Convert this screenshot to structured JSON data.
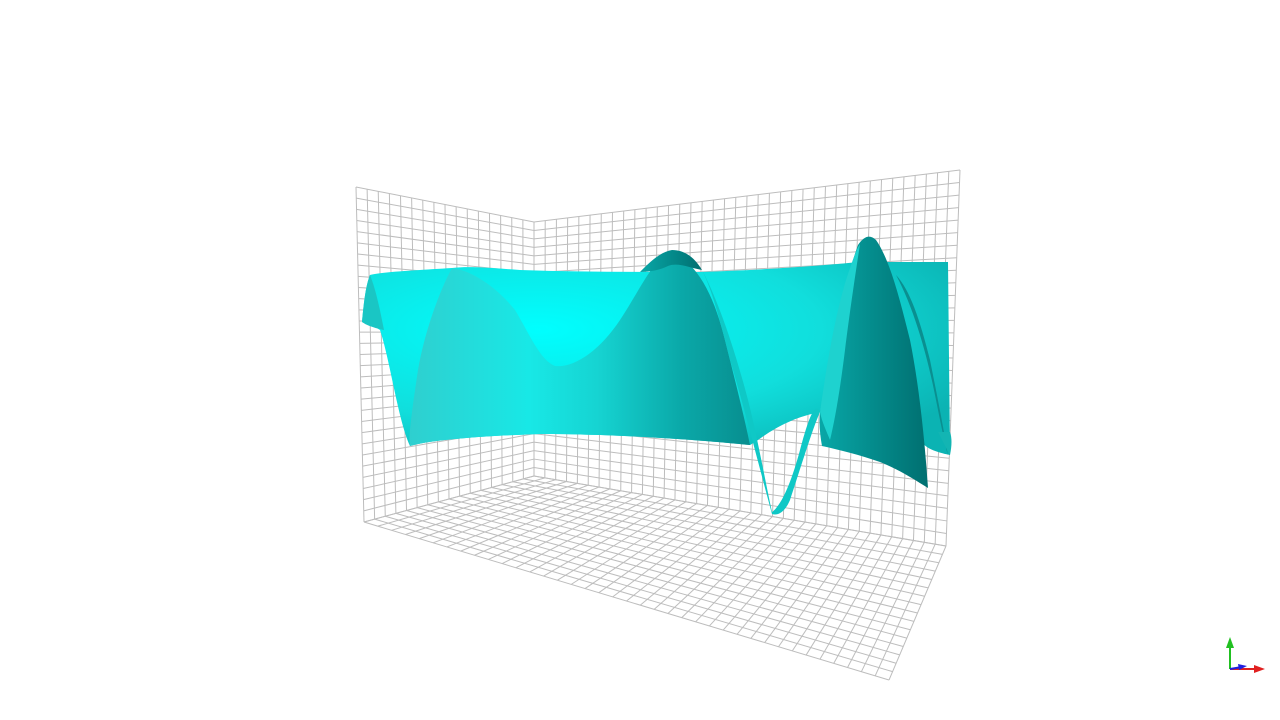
{
  "scene": {
    "background": "#ffffff",
    "grid_color": "#bdbdbd",
    "surface": {
      "light": "#00ffff",
      "mid": "#12d6d3",
      "dark": "#007e80"
    },
    "grid_walls": [
      "back-left",
      "back-right",
      "floor"
    ],
    "orientation_axes": {
      "x_color": "#e02020",
      "y_color": "#21c021",
      "z_color": "#2020e0"
    }
  }
}
